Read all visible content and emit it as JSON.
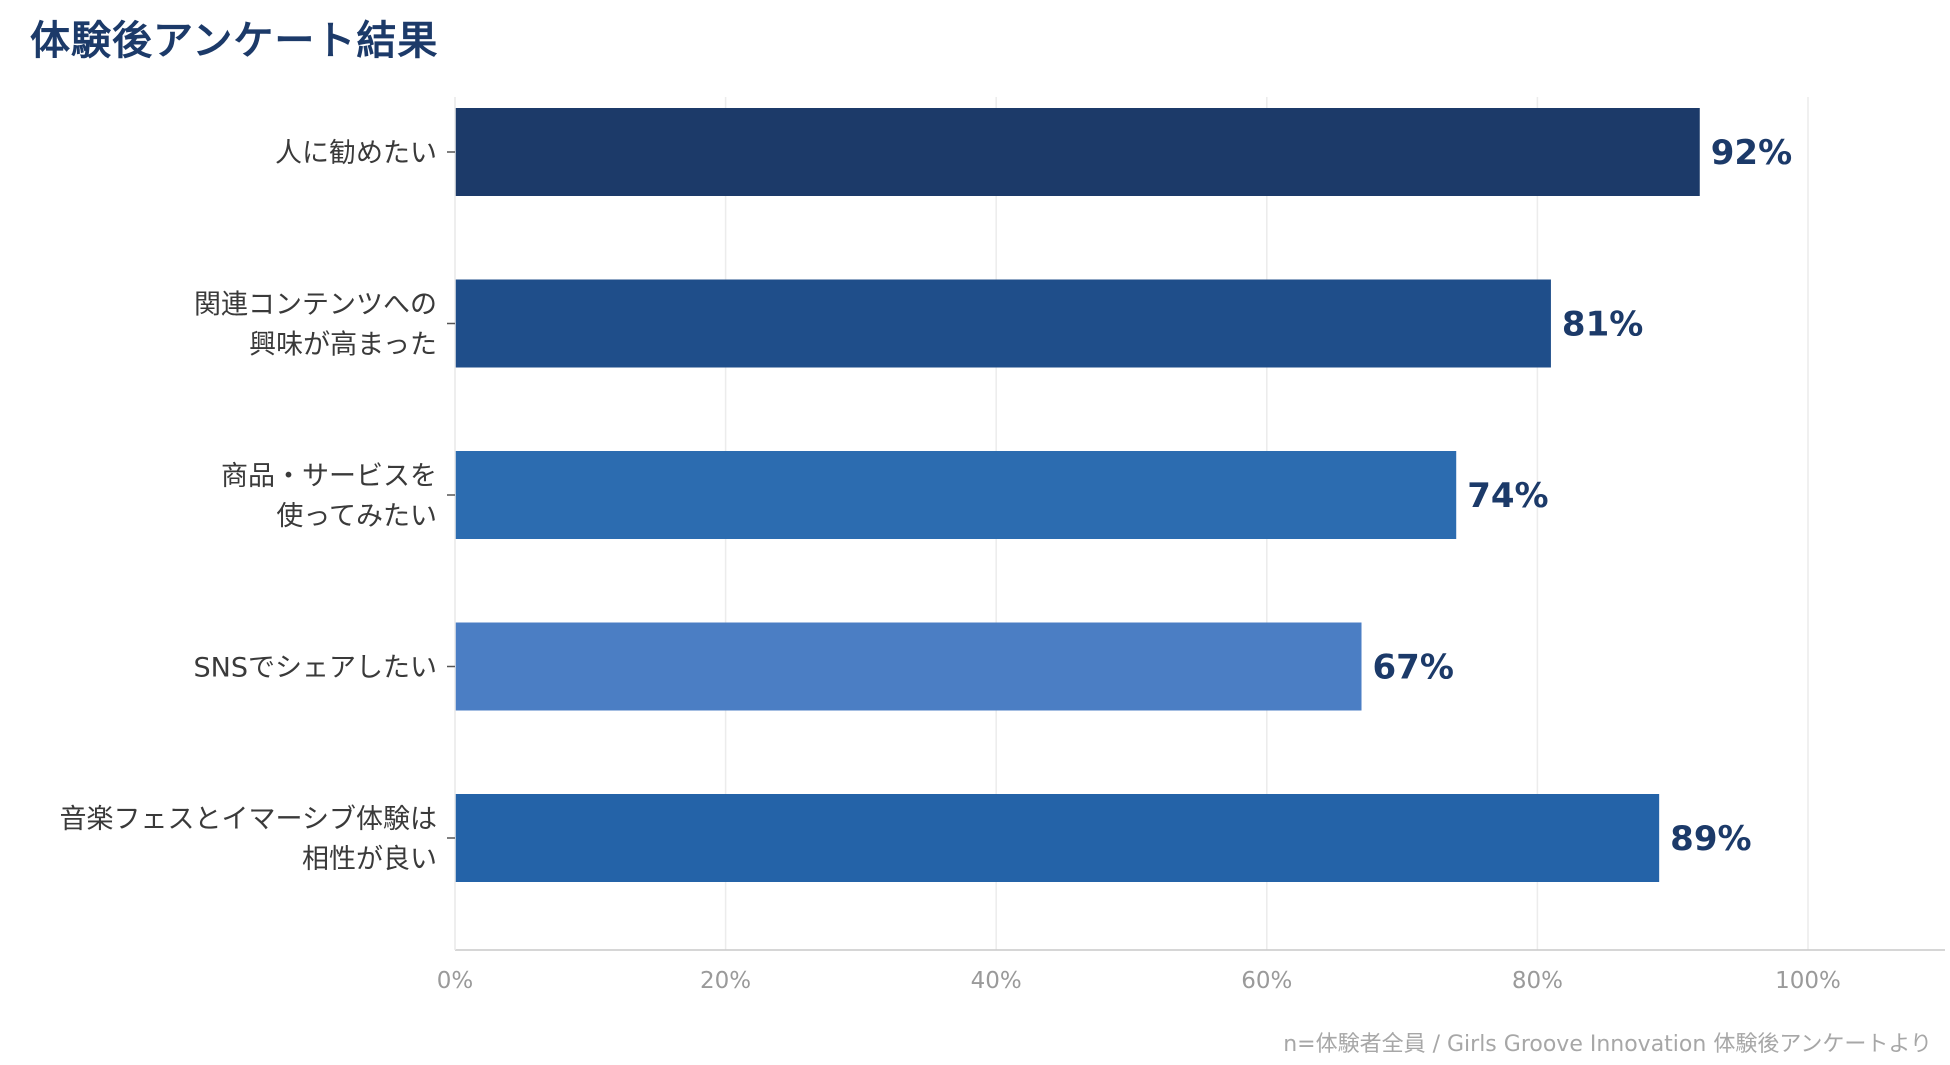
{
  "chart_data": {
    "type": "bar",
    "orientation": "horizontal",
    "title": "体験後アンケート結果",
    "footnote": "n=体験者全員 / Girls Groove Innovation 体験後アンケートより",
    "categories": [
      [
        "人に勧めたい"
      ],
      [
        "関連コンテンツへの",
        "興味が高まった"
      ],
      [
        "商品・サービスを",
        "使ってみたい"
      ],
      [
        "SNSでシェアしたい"
      ],
      [
        "音楽フェスとイマーシブ体験は",
        "相性が良い"
      ]
    ],
    "values": [
      92,
      81,
      74,
      67,
      89
    ],
    "value_labels": [
      "92%",
      "81%",
      "74%",
      "67%",
      "89%"
    ],
    "bar_colors": [
      "#1c3a69",
      "#1f4e8a",
      "#2c6cb0",
      "#4b7ec4",
      "#2463a8"
    ],
    "xlim": [
      0,
      110
    ],
    "xticks": [
      0,
      20,
      40,
      60,
      80,
      100
    ],
    "xtick_labels": [
      "0%",
      "20%",
      "40%",
      "60%",
      "80%",
      "100%"
    ],
    "grid": "vertical",
    "legend": "none"
  },
  "colors": {
    "title": "#1c3a69",
    "value_label": "#1c3a69",
    "grid": "#ececec",
    "axis": "#c9c9c9",
    "tick_text": "#9a9a9a",
    "footnote": "#a7a7a7"
  }
}
